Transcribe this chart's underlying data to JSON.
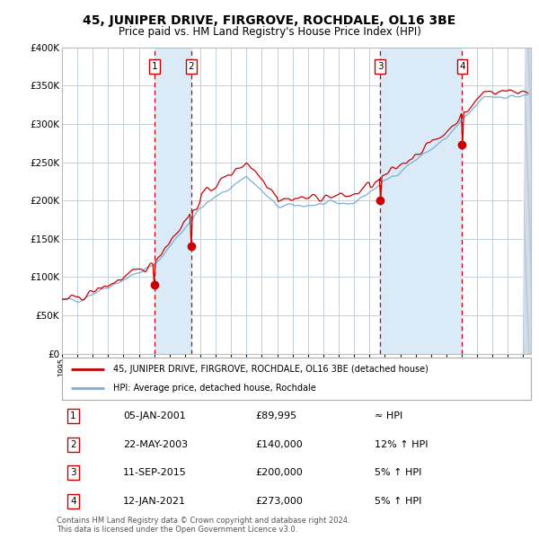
{
  "title": "45, JUNIPER DRIVE, FIRGROVE, ROCHDALE, OL16 3BE",
  "subtitle": "Price paid vs. HM Land Registry's House Price Index (HPI)",
  "ylim": [
    0,
    400000
  ],
  "yticks": [
    0,
    50000,
    100000,
    150000,
    200000,
    250000,
    300000,
    350000,
    400000
  ],
  "ytick_labels": [
    "£0",
    "£50K",
    "£100K",
    "£150K",
    "£200K",
    "£250K",
    "£300K",
    "£350K",
    "£400K"
  ],
  "xlim_start": 1995.0,
  "xlim_end": 2025.5,
  "hpi_color": "#7bafd4",
  "price_color": "#cc0000",
  "sale_dot_color": "#cc0000",
  "bg_color": "#ffffff",
  "grid_color": "#c0d0e0",
  "vline_color": "#cc0000",
  "shade_color": "#daeaf7",
  "hatch_color": "#b0c4d8",
  "title_fontsize": 10,
  "subtitle_fontsize": 8.5,
  "sales": [
    {
      "num": 1,
      "year": 2001.02,
      "price": 89995,
      "label": "05-JAN-2001",
      "price_str": "£89,995",
      "vs": "≈ HPI"
    },
    {
      "num": 2,
      "year": 2003.39,
      "price": 140000,
      "label": "22-MAY-2003",
      "price_str": "£140,000",
      "vs": "12% ↑ HPI"
    },
    {
      "num": 3,
      "year": 2015.69,
      "price": 200000,
      "label": "11-SEP-2015",
      "price_str": "£200,000",
      "vs": "5% ↑ HPI"
    },
    {
      "num": 4,
      "year": 2021.03,
      "price": 273000,
      "label": "12-JAN-2021",
      "price_str": "£273,000",
      "vs": "5% ↑ HPI"
    }
  ],
  "legend_line1": "45, JUNIPER DRIVE, FIRGROVE, ROCHDALE, OL16 3BE (detached house)",
  "legend_line2": "HPI: Average price, detached house, Rochdale",
  "footer": "Contains HM Land Registry data © Crown copyright and database right 2024.\nThis data is licensed under the Open Government Licence v3.0."
}
